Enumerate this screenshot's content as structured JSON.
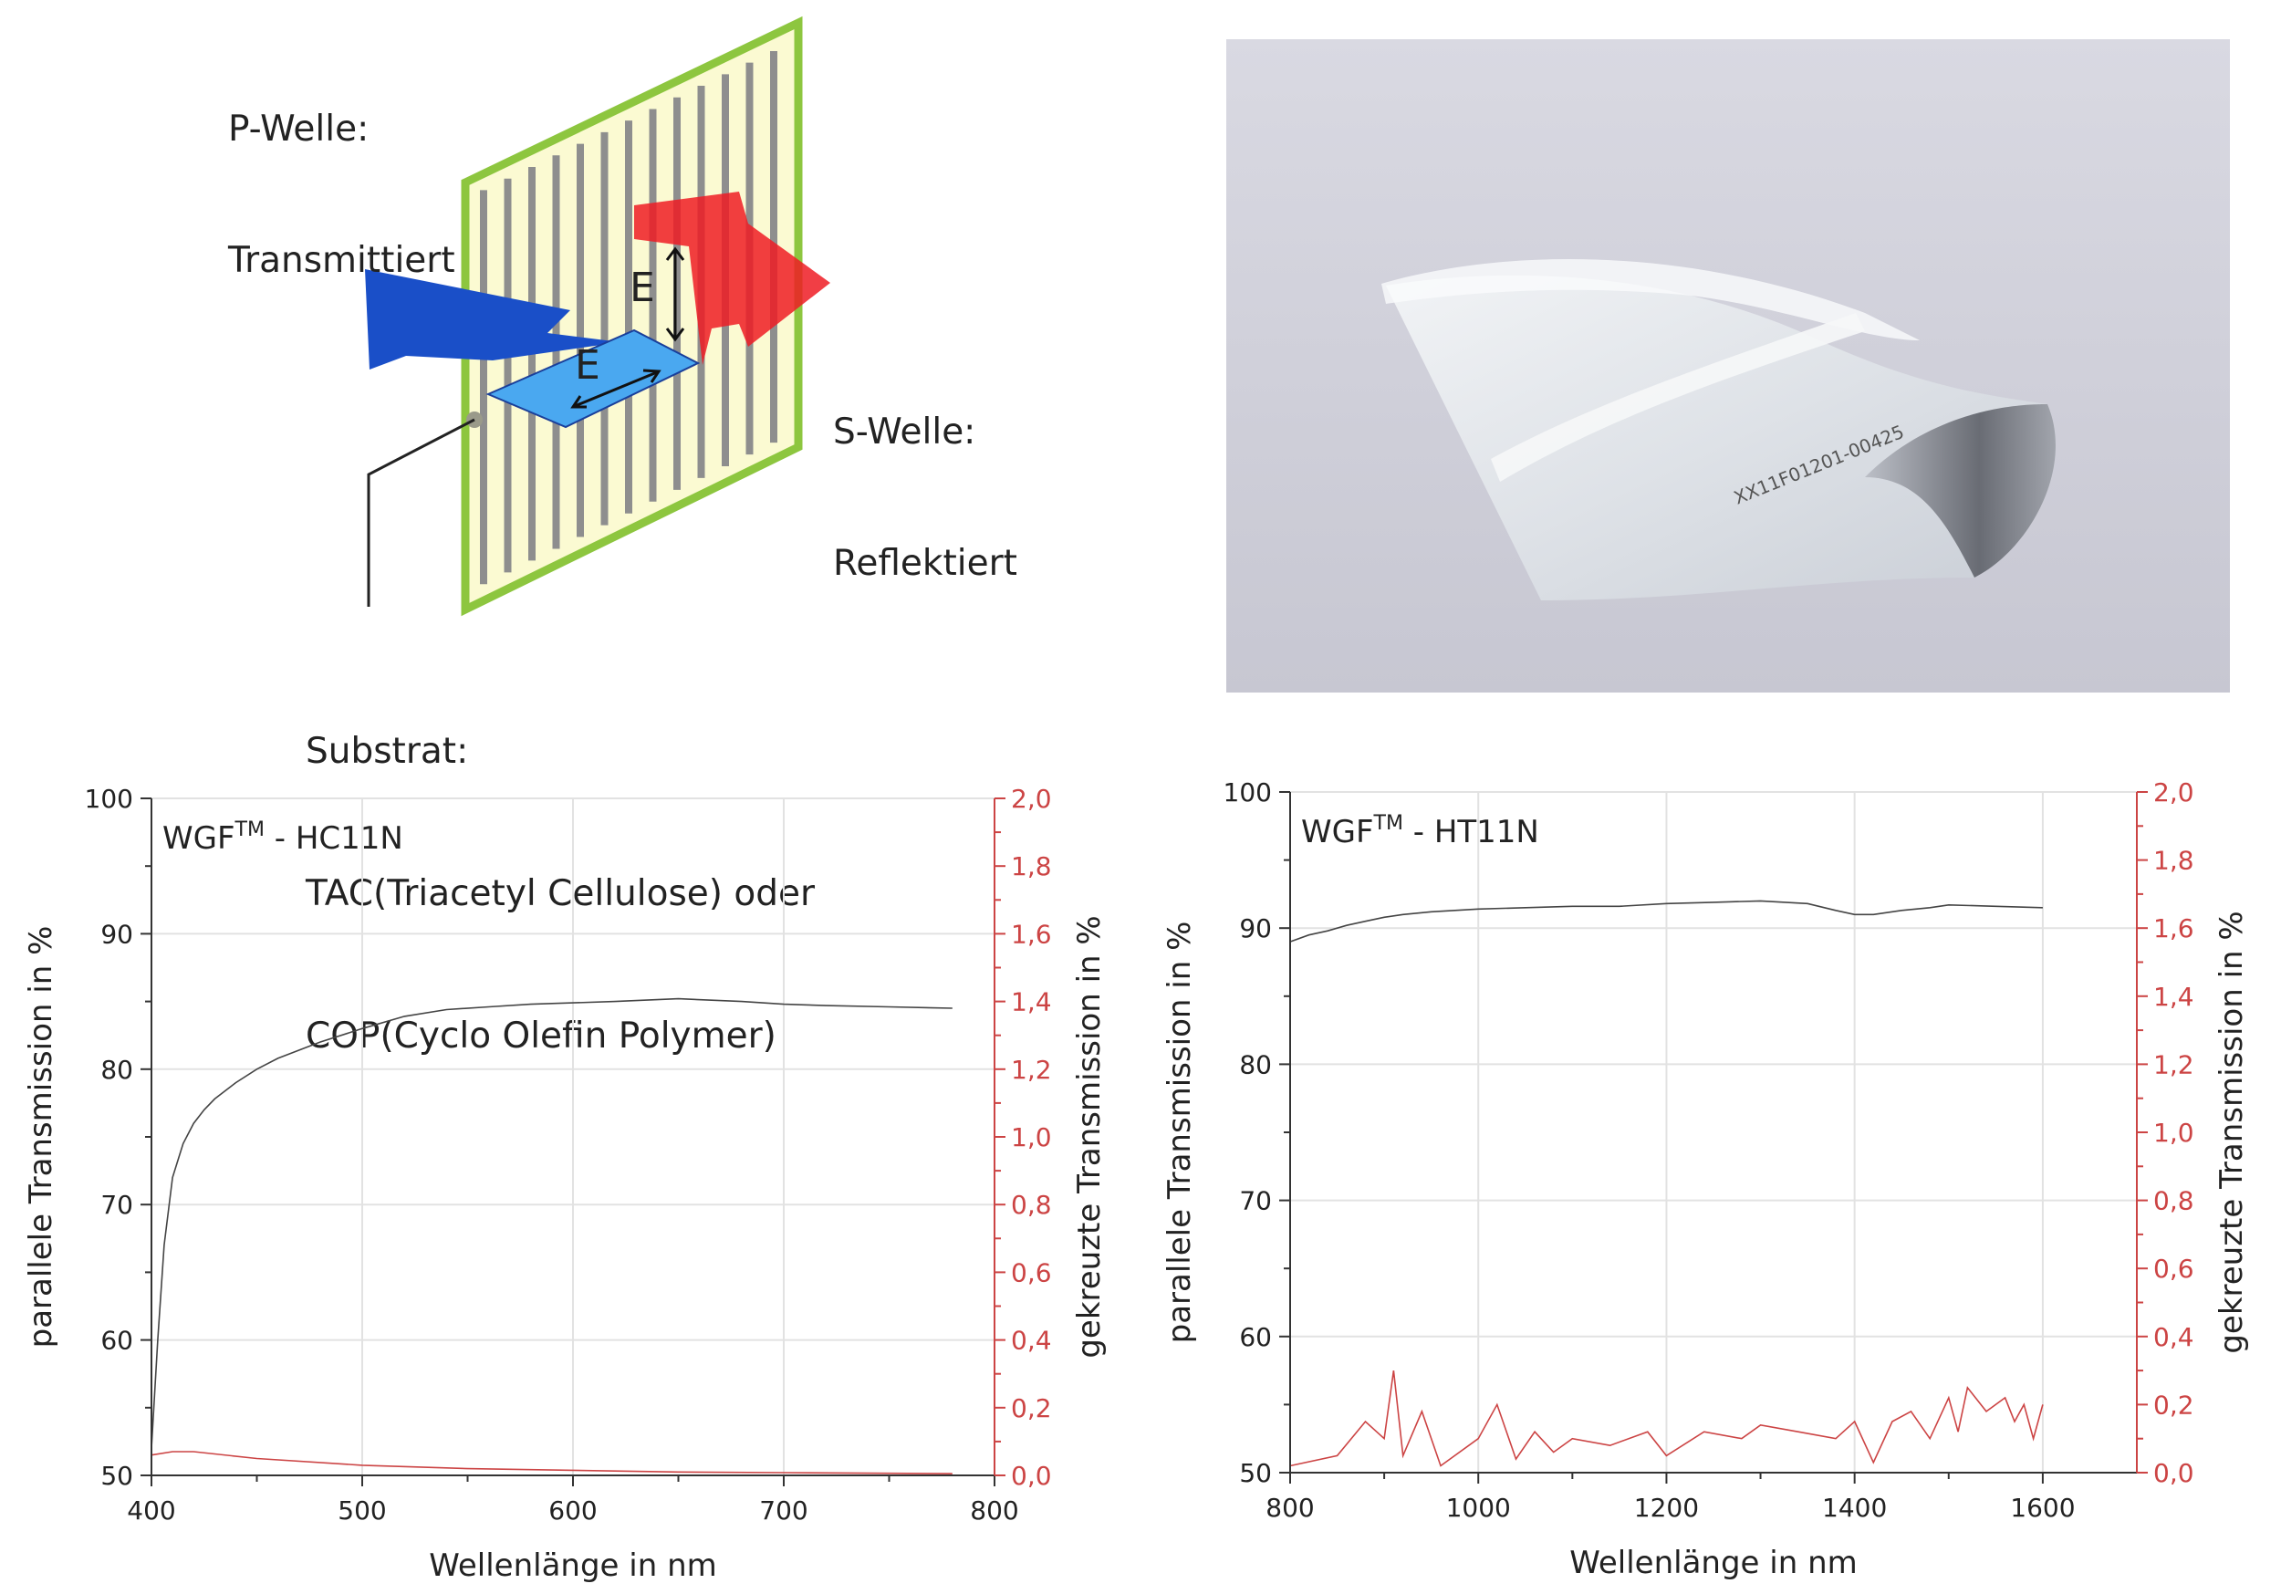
{
  "diagram": {
    "p_wave": [
      "P-Welle:",
      "Transmittiert"
    ],
    "s_wave": [
      "S-Welle:",
      "Reflektiert"
    ],
    "substrate": [
      "Substrat:",
      "TAC(Triacetyl Cellulose) oder",
      "COP(Cyclo Olefin Polymer)"
    ],
    "field_symbol": "E"
  },
  "photo": {
    "subject": "flexible wire-grid polarizer film sample",
    "film_text": "XX11F01201-00425"
  },
  "colors": {
    "frame_green": "#8dc63f",
    "frame_fill": "#fbfad2",
    "wire_gray": "#8e8e8e",
    "beam_blue": "#1a4fc8",
    "beam_red": "#ee1c25",
    "curve_black": "#444444",
    "curve_red": "#cc4444"
  },
  "chart_data": [
    {
      "type": "line",
      "title": "WGF",
      "title_sup": "TM",
      "title_suffix": " - HC11N",
      "xlabel": "Wellenlänge in nm",
      "ylabel": "parallele Transmission in %",
      "y2label": "gekreuzte Transmission in %",
      "xlim": [
        400,
        800
      ],
      "ylim": [
        50,
        100
      ],
      "y2lim": [
        0,
        2.0
      ],
      "xticks": [
        400,
        500,
        600,
        700,
        800
      ],
      "yticks": [
        50,
        60,
        70,
        80,
        90,
        100
      ],
      "y2ticks": [
        "0,0",
        "0,2",
        "0,4",
        "0,6",
        "0,8",
        "1,0",
        "1,2",
        "1,4",
        "1,6",
        "1,8",
        "2,0"
      ],
      "grid": true,
      "series": [
        {
          "axis": "left",
          "color": "#444444",
          "x": [
            400,
            403,
            406,
            410,
            415,
            420,
            425,
            430,
            440,
            450,
            460,
            480,
            500,
            520,
            540,
            560,
            580,
            600,
            620,
            650,
            680,
            700,
            720,
            750,
            780
          ],
          "y": [
            52,
            60,
            67,
            72,
            74.5,
            76,
            77,
            77.8,
            79,
            80,
            80.8,
            82,
            83,
            83.9,
            84.4,
            84.6,
            84.8,
            84.9,
            85,
            85.2,
            85,
            84.8,
            84.7,
            84.6,
            84.5
          ]
        },
        {
          "axis": "right",
          "color": "#cc4444",
          "x": [
            400,
            410,
            420,
            450,
            500,
            550,
            600,
            650,
            700,
            780
          ],
          "y": [
            0.06,
            0.07,
            0.07,
            0.05,
            0.03,
            0.02,
            0.015,
            0.01,
            0.008,
            0.005
          ]
        }
      ]
    },
    {
      "type": "line",
      "title": "WGF",
      "title_sup": "TM",
      "title_suffix": " - HT11N",
      "xlabel": "Wellenlänge in nm",
      "ylabel": "parallele Transmission in %",
      "y2label": "gekreuzte Transmission in %",
      "xlim": [
        800,
        1700
      ],
      "ylim": [
        50,
        100
      ],
      "y2lim": [
        0,
        2.0
      ],
      "xticks": [
        800,
        1000,
        1200,
        1400,
        1600
      ],
      "yticks": [
        50,
        60,
        70,
        80,
        90,
        100
      ],
      "y2ticks": [
        "0,0",
        "0,2",
        "0,4",
        "0,6",
        "0,8",
        "1,0",
        "1,2",
        "1,4",
        "1,6",
        "1,8",
        "2,0"
      ],
      "grid": true,
      "series": [
        {
          "axis": "left",
          "color": "#444444",
          "x": [
            800,
            820,
            840,
            860,
            880,
            900,
            920,
            950,
            1000,
            1050,
            1100,
            1150,
            1200,
            1250,
            1300,
            1350,
            1380,
            1400,
            1420,
            1450,
            1480,
            1500,
            1550,
            1600
          ],
          "y": [
            89,
            89.5,
            89.8,
            90.2,
            90.5,
            90.8,
            91,
            91.2,
            91.4,
            91.5,
            91.6,
            91.6,
            91.8,
            91.9,
            92,
            91.8,
            91.3,
            91,
            91,
            91.3,
            91.5,
            91.7,
            91.6,
            91.5
          ]
        },
        {
          "axis": "right",
          "color": "#cc4444",
          "x": [
            800,
            850,
            880,
            900,
            910,
            920,
            940,
            960,
            1000,
            1020,
            1040,
            1060,
            1080,
            1100,
            1140,
            1180,
            1200,
            1240,
            1280,
            1300,
            1340,
            1380,
            1400,
            1420,
            1440,
            1460,
            1480,
            1500,
            1510,
            1520,
            1540,
            1560,
            1570,
            1580,
            1590,
            1600
          ],
          "y": [
            0.02,
            0.05,
            0.15,
            0.1,
            0.3,
            0.05,
            0.18,
            0.02,
            0.1,
            0.2,
            0.04,
            0.12,
            0.06,
            0.1,
            0.08,
            0.12,
            0.05,
            0.12,
            0.1,
            0.14,
            0.12,
            0.1,
            0.15,
            0.03,
            0.15,
            0.18,
            0.1,
            0.22,
            0.12,
            0.25,
            0.18,
            0.22,
            0.15,
            0.2,
            0.1,
            0.2
          ]
        }
      ]
    }
  ]
}
